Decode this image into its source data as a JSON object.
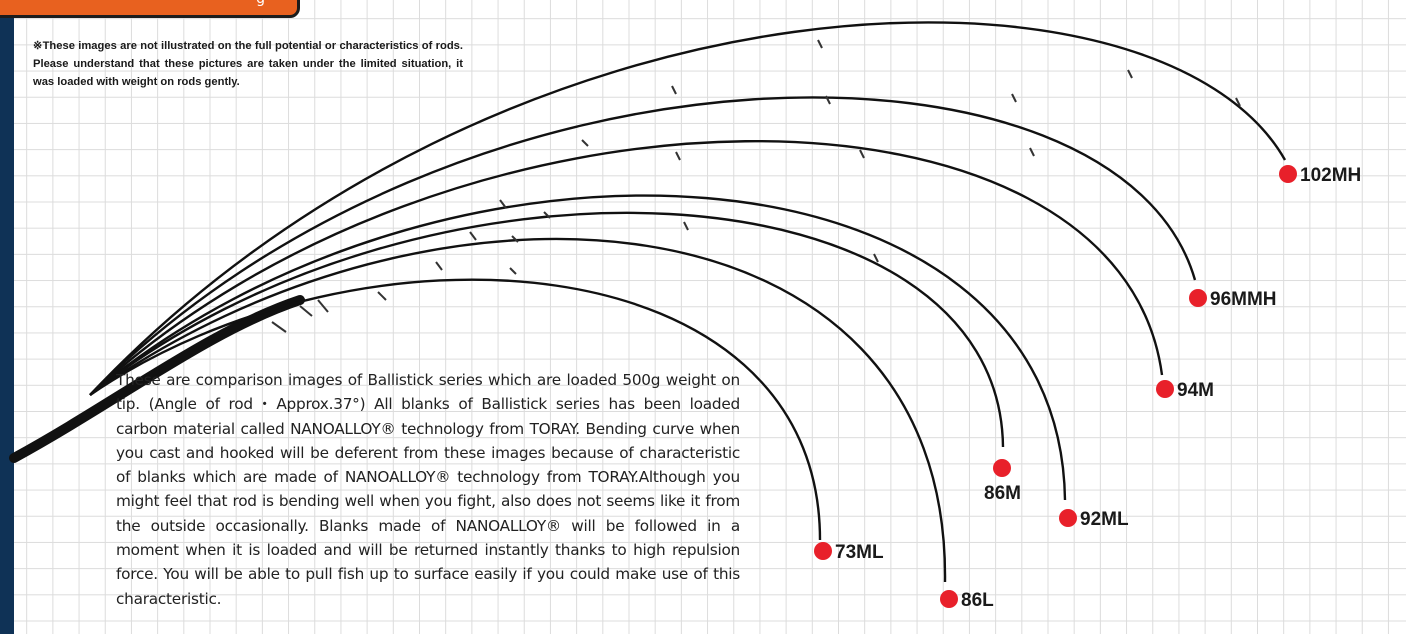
{
  "header_tab": {
    "label": "g"
  },
  "disclaimer": "※These images are not illustrated on the full potential or characteristics of rods. Please understand that these pictures are taken under the limited situation, it was loaded with weight on rods gently.",
  "description": "These are comparison images of Ballistick series which are loaded 500g weight on tip. (Angle of rod・Approx.37°) All blanks of Ballistick series has been loaded carbon material called NANOALLOY® technology from TORAY. Bending curve when you cast and hooked will be deferent from these images because of characteristic of blanks which are made of NANOALLOY® technology from TORAY.Although you might feel that rod is bending well when you fight, also does not seems like it from the outside occasionally. Blanks made of NANOALLOY® will be followed in a moment when it is loaded and will be returned instantly thanks to high repulsion force. You will be able to pull fish up to surface easily if you could make use of this characteristic.",
  "rods": [
    {
      "model": "102MH"
    },
    {
      "model": "96MMH"
    },
    {
      "model": "94M"
    },
    {
      "model": "86M"
    },
    {
      "model": "92ML"
    },
    {
      "model": "73ML"
    },
    {
      "model": "86L"
    }
  ],
  "colors": {
    "marker": "#e8202a",
    "rod": "#111111",
    "grid": "#dcdcdc",
    "tab": "#e8611f",
    "left_bar": "#0f3256"
  }
}
